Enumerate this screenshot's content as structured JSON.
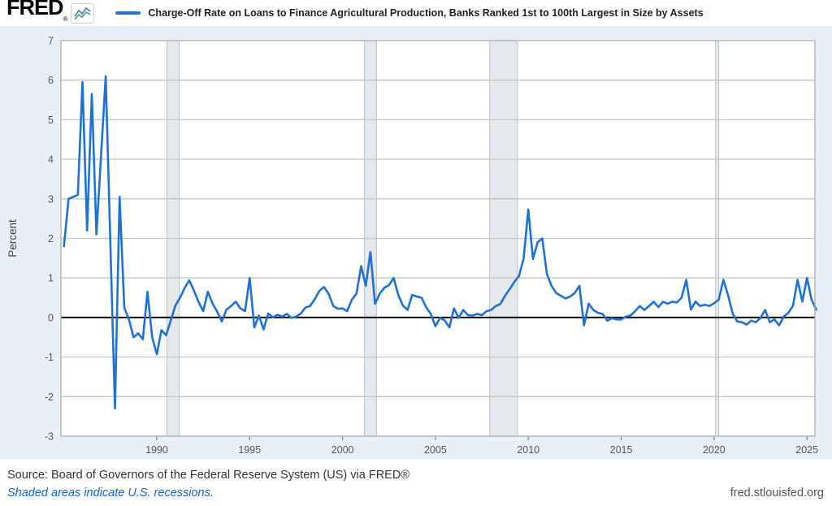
{
  "header": {
    "logo_text": "FRED",
    "logo_registered": "®",
    "series_title": "Charge-Off Rate on Loans to Finance Agricultural Production, Banks Ranked 1st to 100th Largest in Size by Assets"
  },
  "footer": {
    "source_text": "Source: Board of Governors of the Federal Reserve System (US) via FRED®",
    "recession_note": "Shaded areas indicate U.S. recessions.",
    "site_url": "fred.stlouisfed.org"
  },
  "colors": {
    "line": "#1f72d3",
    "page_bg": "#e9eff7",
    "plot_bg": "#ffffff",
    "grid": "#c6c6c6",
    "plot_border": "#adadad",
    "zero_line": "#000000",
    "recession_fill": "#e5e8ed",
    "recession_edge": "#bfc3c9",
    "tick_text": "#555555",
    "axis_label_text": "#444444"
  },
  "chart_data": {
    "type": "line",
    "title": "Charge-Off Rate on Loans to Finance Agricultural Production, Banks Ranked 1st to 100th Largest in Size by Assets",
    "xlabel": "",
    "ylabel": "Percent",
    "ylim": [
      -3,
      7
    ],
    "yticks": [
      -3,
      -2,
      -1,
      0,
      1,
      2,
      3,
      4,
      5,
      6,
      7
    ],
    "xticks": [
      1990,
      1995,
      2000,
      2005,
      2010,
      2015,
      2020,
      2025
    ],
    "x_range": [
      1984.84,
      2025.43
    ],
    "x_start": 1985.0,
    "x_step": 0.25,
    "grid": true,
    "legend_position": "top",
    "frequency": "Quarterly",
    "units": "Percent",
    "recessions": [
      [
        1990.54,
        1991.21
      ],
      [
        2001.17,
        2001.83
      ],
      [
        2007.92,
        2009.42
      ],
      [
        2020.08,
        2020.25
      ]
    ],
    "values": [
      1.8,
      3.0,
      3.05,
      3.1,
      5.95,
      2.2,
      5.65,
      2.1,
      4.1,
      6.1,
      1.9,
      -2.3,
      3.05,
      0.25,
      -0.05,
      -0.5,
      -0.4,
      -0.55,
      0.65,
      -0.5,
      -0.93,
      -0.32,
      -0.45,
      -0.08,
      0.3,
      0.5,
      0.75,
      0.94,
      0.68,
      0.39,
      0.16,
      0.65,
      0.35,
      0.15,
      -0.1,
      0.2,
      0.29,
      0.4,
      0.23,
      0.16,
      1.0,
      -0.25,
      0.05,
      -0.3,
      0.1,
      0.0,
      0.07,
      0.02,
      0.09,
      -0.01,
      0.02,
      0.1,
      0.25,
      0.29,
      0.46,
      0.67,
      0.77,
      0.6,
      0.29,
      0.22,
      0.23,
      0.16,
      0.45,
      0.6,
      1.3,
      0.8,
      1.65,
      0.35,
      0.6,
      0.75,
      0.82,
      1.0,
      0.57,
      0.3,
      0.19,
      0.57,
      0.53,
      0.5,
      0.26,
      0.09,
      -0.22,
      -0.01,
      -0.07,
      -0.25,
      0.23,
      -0.01,
      0.19,
      0.06,
      0.05,
      0.09,
      0.06,
      0.16,
      0.19,
      0.29,
      0.34,
      0.55,
      0.72,
      0.9,
      1.05,
      1.5,
      2.73,
      1.48,
      1.9,
      2.0,
      1.1,
      0.8,
      0.62,
      0.55,
      0.48,
      0.53,
      0.62,
      0.8,
      -0.2,
      0.35,
      0.19,
      0.12,
      0.09,
      -0.08,
      -0.02,
      -0.05,
      -0.05,
      0.02,
      0.05,
      0.16,
      0.29,
      0.19,
      0.29,
      0.4,
      0.26,
      0.4,
      0.35,
      0.4,
      0.38,
      0.5,
      0.95,
      0.2,
      0.4,
      0.29,
      0.32,
      0.29,
      0.36,
      0.45,
      0.95,
      0.57,
      0.1,
      -0.1,
      -0.12,
      -0.18,
      -0.08,
      -0.12,
      -0.01,
      0.19,
      -0.12,
      -0.05,
      -0.2,
      0.02,
      0.12,
      0.3,
      0.95,
      0.4,
      1.0,
      0.45,
      0.2
    ]
  }
}
